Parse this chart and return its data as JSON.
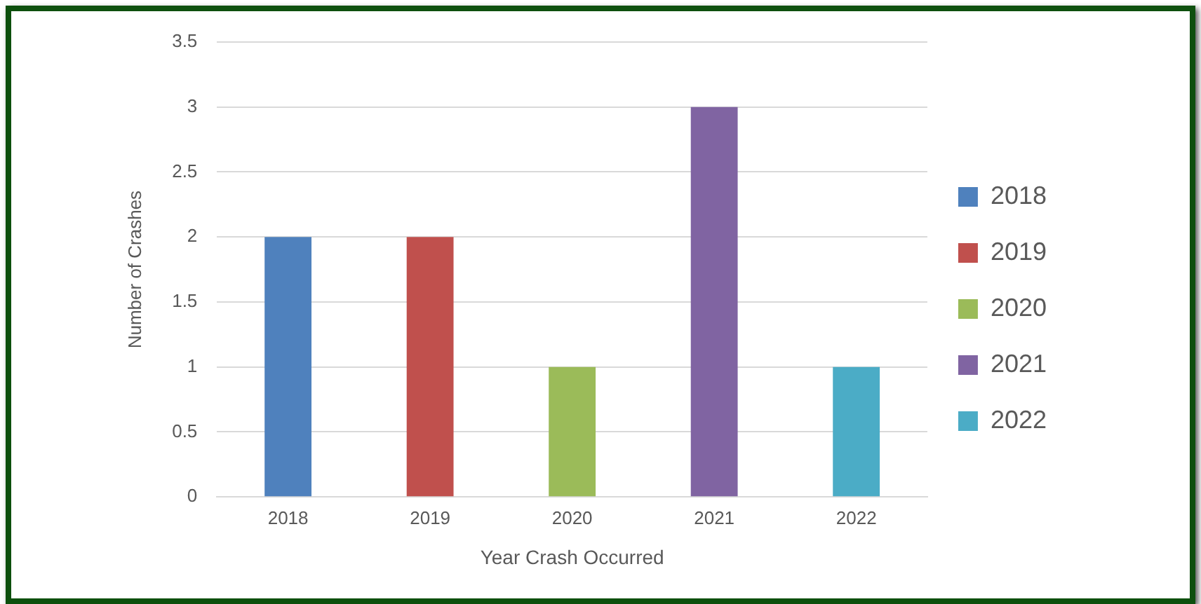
{
  "chart_data": {
    "type": "bar",
    "xlabel": "Year Crash Occurred",
    "ylabel": "Number of Crashes",
    "categories": [
      "2018",
      "2019",
      "2020",
      "2021",
      "2022"
    ],
    "series": [
      {
        "name": "2018",
        "color": "#4f81bd",
        "values": [
          2,
          null,
          null,
          null,
          null
        ]
      },
      {
        "name": "2019",
        "color": "#c0504d",
        "values": [
          null,
          2,
          null,
          null,
          null
        ]
      },
      {
        "name": "2020",
        "color": "#9bbb59",
        "values": [
          null,
          null,
          1,
          null,
          null
        ]
      },
      {
        "name": "2021",
        "color": "#8064a2",
        "values": [
          null,
          null,
          null,
          3,
          null
        ]
      },
      {
        "name": "2022",
        "color": "#4bacc6",
        "values": [
          null,
          null,
          null,
          null,
          1
        ]
      }
    ],
    "ylim": [
      0,
      3.5
    ],
    "yticks": [
      0,
      0.5,
      1,
      1.5,
      2,
      2.5,
      3,
      3.5
    ],
    "grid": "y",
    "legend": "right"
  }
}
